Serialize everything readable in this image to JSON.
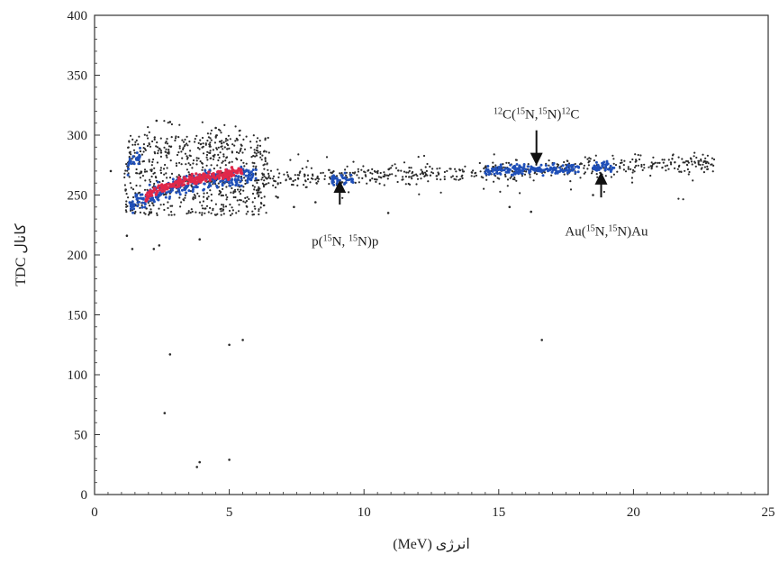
{
  "chart_data": {
    "type": "scatter",
    "title": "",
    "xlabel": "انرژی (MeV)",
    "ylabel": "TDC کانال",
    "xlim": [
      0,
      25
    ],
    "ylim": [
      0,
      400
    ],
    "x_ticks": [
      0,
      5,
      10,
      15,
      20,
      25
    ],
    "y_ticks": [
      0,
      50,
      100,
      150,
      200,
      250,
      300,
      350,
      400
    ],
    "grid": false,
    "legend": "none",
    "point_colors": {
      "sparse": "#2b2b2b",
      "dense": "#1f4fb8",
      "densest": "#e0284a"
    },
    "outlier_points": [
      {
        "x": 1.2,
        "y": 216
      },
      {
        "x": 1.4,
        "y": 205
      },
      {
        "x": 2.2,
        "y": 205
      },
      {
        "x": 2.4,
        "y": 208
      },
      {
        "x": 3.9,
        "y": 213
      },
      {
        "x": 5.0,
        "y": 125
      },
      {
        "x": 5.5,
        "y": 129
      },
      {
        "x": 2.8,
        "y": 117
      },
      {
        "x": 2.6,
        "y": 68
      },
      {
        "x": 3.8,
        "y": 23
      },
      {
        "x": 3.9,
        "y": 27
      },
      {
        "x": 5.0,
        "y": 29
      },
      {
        "x": 16.6,
        "y": 129
      },
      {
        "x": 2.3,
        "y": 312
      },
      {
        "x": 2.8,
        "y": 311
      },
      {
        "x": 4.5,
        "y": 306
      },
      {
        "x": 5.3,
        "y": 296
      },
      {
        "x": 0.6,
        "y": 270
      },
      {
        "x": 6.8,
        "y": 248
      },
      {
        "x": 7.4,
        "y": 240
      },
      {
        "x": 8.2,
        "y": 244
      },
      {
        "x": 10.9,
        "y": 235
      },
      {
        "x": 15.4,
        "y": 240
      },
      {
        "x": 16.2,
        "y": 236
      },
      {
        "x": 18.5,
        "y": 250
      }
    ],
    "clusters": [
      {
        "name": "low-energy spread",
        "x_range": [
          1.1,
          6.5
        ],
        "y_range": [
          233,
          300
        ],
        "count": 650,
        "color": "sparse"
      },
      {
        "name": "low-energy upper scatter",
        "x_range": [
          1.5,
          5.5
        ],
        "y_range": [
          280,
          312
        ],
        "count": 55,
        "color": "sparse"
      },
      {
        "name": "main band",
        "x_range": [
          6,
          23
        ],
        "y_center_start": 262,
        "y_center_end": 277,
        "spread": 4,
        "count": 560,
        "color": "sparse"
      },
      {
        "name": "main band scatter",
        "x_range": [
          6,
          23
        ],
        "y_range": [
          245,
          285
        ],
        "count": 45,
        "color": "sparse"
      }
    ],
    "dense_regions": [
      {
        "x_range": [
          1.3,
          6.0
        ],
        "y_start": 238,
        "y_end": 268,
        "spread": 4,
        "count": 260,
        "color": "dense"
      },
      {
        "x_range": [
          1.9,
          5.5
        ],
        "y_start": 246,
        "y_end": 270,
        "spread": 2,
        "count": 240,
        "color": "densest"
      },
      {
        "x_range": [
          1.2,
          1.7
        ],
        "y_start": 270,
        "y_end": 282,
        "spread": 3,
        "count": 30,
        "color": "dense"
      },
      {
        "x_range": [
          8.8,
          9.6
        ],
        "y_start": 262,
        "y_end": 264,
        "spread": 2,
        "count": 40,
        "color": "dense"
      },
      {
        "x_range": [
          14.5,
          18.0
        ],
        "y_start": 270,
        "y_end": 272,
        "spread": 2,
        "count": 170,
        "color": "dense"
      },
      {
        "x_range": [
          18.5,
          19.3
        ],
        "y_start": 273,
        "y_end": 274,
        "spread": 2,
        "count": 40,
        "color": "dense"
      }
    ],
    "annotations": [
      {
        "base": "p(",
        "sup1": "15",
        "mid": "N, ",
        "sup2": "15",
        "end": "N)p",
        "label_x": 9.3,
        "label_y": 208,
        "arrow_x": 9.1,
        "arrow_from_y": 242,
        "arrow_to_y": 257
      },
      {
        "pre_sup": "12",
        "base": "C(",
        "sup1": "15",
        "mid": "N,",
        "sup2": "15",
        "end": "N)",
        "post_sup": "12",
        "tail": "C",
        "label_x": 16.4,
        "label_y": 314,
        "arrow_x": 16.4,
        "arrow_from_y": 304,
        "arrow_to_y": 280
      },
      {
        "base": "Au(",
        "sup1": "15",
        "mid": "N,",
        "sup2": "15",
        "end": "N)Au",
        "label_x": 19.0,
        "label_y": 216,
        "arrow_x": 18.8,
        "arrow_from_y": 248,
        "arrow_to_y": 264
      }
    ]
  }
}
